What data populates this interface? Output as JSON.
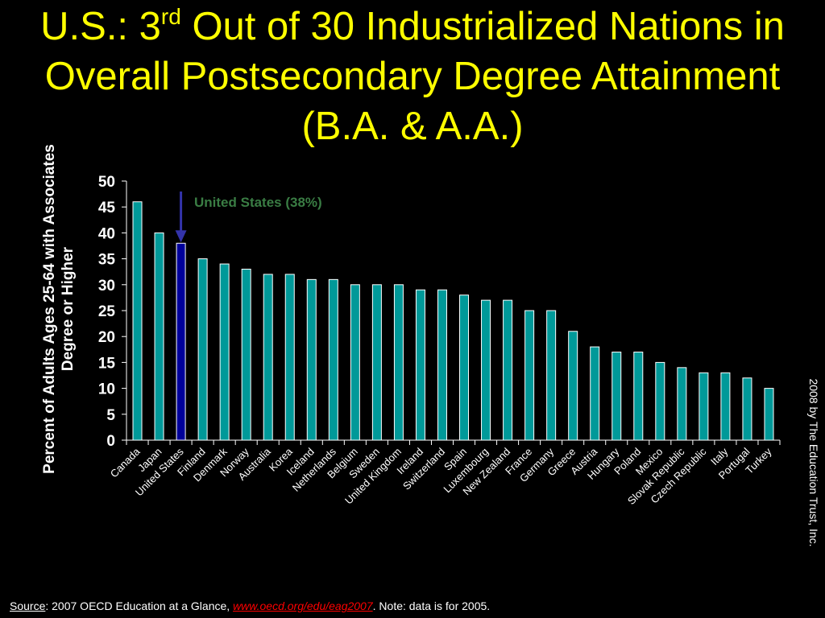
{
  "title": {
    "part1": "U.S.: 3",
    "superscript": "rd",
    "part2": " Out of 30 Industrialized Nations in Overall Postsecondary Degree Attainment (B.A. & A.A.)"
  },
  "credit": "2008 by The Education Trust, Inc.",
  "source": {
    "label": "Source",
    "text1": ":  2007 OECD Education at a Glance, ",
    "link": "www.oecd.org/edu/eag2007",
    "text2": ".  Note: data is for 2005."
  },
  "colors": {
    "bar": "#009999",
    "highlight_bar": "#000099",
    "annotation": "#3a7d44",
    "arrow": "#3333aa",
    "title": "#ffff00"
  },
  "chart_data": {
    "type": "bar",
    "title": "U.S.: 3rd Out of 30 Industrialized Nations in Overall Postsecondary Degree Attainment (B.A. & A.A.)",
    "xlabel": "",
    "ylabel": "Percent of Adults Ages 25-64 with Associates Degree or Higher",
    "ylim": [
      0,
      50
    ],
    "yticks": [
      0,
      5,
      10,
      15,
      20,
      25,
      30,
      35,
      40,
      45,
      50
    ],
    "grid": false,
    "categories": [
      "Canada",
      "Japan",
      "United States",
      "Finland",
      "Denmark",
      "Norway",
      "Australia",
      "Korea",
      "Iceland",
      "Netherlands",
      "Belgium",
      "Sweden",
      "United Kingdom",
      "Ireland",
      "Switzerland",
      "Spain",
      "Luxembourg",
      "New Zealand",
      "France",
      "Germany",
      "Greece",
      "Austria",
      "Hungary",
      "Poland",
      "Mexico",
      "Slovak Republic",
      "Czech Republic",
      "Italy",
      "Portugal",
      "Turkey"
    ],
    "values": [
      46,
      40,
      38,
      35,
      34,
      33,
      32,
      32,
      31,
      31,
      30,
      30,
      30,
      29,
      29,
      28,
      27,
      27,
      25,
      25,
      21,
      18,
      17,
      17,
      15,
      14,
      13,
      13,
      12,
      10
    ],
    "highlight": {
      "category": "United States",
      "annotation": "United States (38%)"
    }
  }
}
